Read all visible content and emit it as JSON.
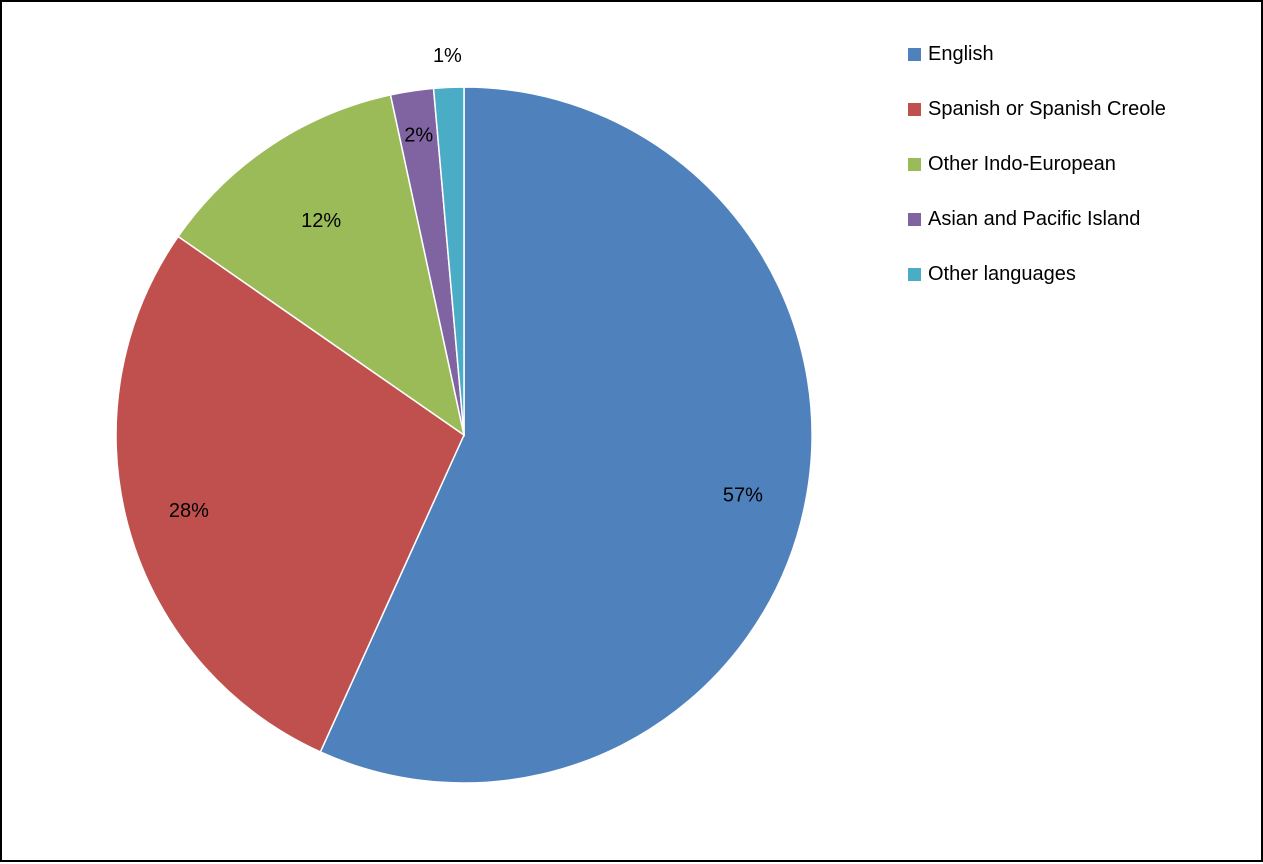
{
  "chart_data": {
    "type": "pie",
    "title": "",
    "slices": [
      {
        "name": "English",
        "value": 57,
        "label": "57%",
        "color": "#4F81BD"
      },
      {
        "name": "Spanish or Spanish Creole",
        "value": 28,
        "label": "28%",
        "color": "#C0504D"
      },
      {
        "name": "Other Indo-European",
        "value": 12,
        "label": "12%",
        "color": "#9BBB59"
      },
      {
        "name": "Asian and Pacific Island",
        "value": 2,
        "label": "2%",
        "color": "#8064A2"
      },
      {
        "name": "Other languages",
        "value": 1.4,
        "label": "1%",
        "color": "#4BACC6"
      }
    ],
    "start_angle": "12 o'clock",
    "direction": "clockwise",
    "legend_placement": "right"
  },
  "legend": {
    "items": [
      {
        "label": "English",
        "color": "#4F81BD"
      },
      {
        "label": "Spanish or Spanish Creole",
        "color": "#C0504D"
      },
      {
        "label": "Other Indo-European",
        "color": "#9BBB59"
      },
      {
        "label": "Asian and Pacific Island",
        "color": "#8064A2"
      },
      {
        "label": "Other languages",
        "color": "#4BACC6"
      }
    ]
  }
}
